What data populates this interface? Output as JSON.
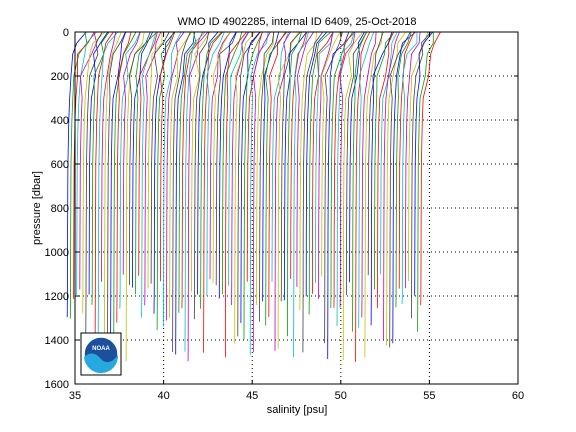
{
  "chart_data": {
    "type": "line",
    "title": "WMO ID 4902285, internal ID 6409, 25-Oct-2018",
    "xlabel": "salinity [psu]",
    "ylabel": "pressure [dbar]",
    "xlim": [
      35,
      60
    ],
    "ylim": [
      0,
      1600
    ],
    "y_reversed": true,
    "grid": true,
    "x_ticks": [
      35,
      40,
      45,
      50,
      55,
      60
    ],
    "y_ticks": [
      0,
      200,
      400,
      600,
      800,
      1000,
      1200,
      1400,
      1600
    ],
    "profile_count": 115,
    "profile_offset_psu": 0.175,
    "first_profile": {
      "salinity": [
        35.6,
        35.3,
        35.0,
        34.8,
        34.7,
        34.65,
        34.6,
        34.58,
        34.57,
        34.56
      ],
      "pressure": [
        0,
        50,
        100,
        200,
        300,
        400,
        600,
        900,
        1200,
        1500
      ]
    },
    "series_colors": [
      "#0000ff",
      "#00a000",
      "#ff0000",
      "#00c0c0",
      "#c000c0",
      "#c0c000",
      "#404040"
    ]
  },
  "logo": {
    "text": "NOAA"
  }
}
